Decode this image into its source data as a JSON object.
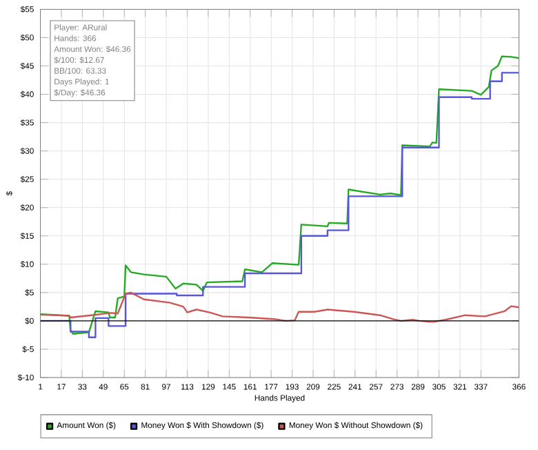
{
  "chart_data": {
    "type": "line",
    "xlabel": "Hands Played",
    "ylabel": "$",
    "xlim": [
      1,
      366
    ],
    "xticks": [
      1,
      17,
      33,
      49,
      65,
      81,
      97,
      113,
      129,
      145,
      161,
      177,
      193,
      209,
      225,
      241,
      257,
      273,
      289,
      305,
      321,
      337,
      366
    ],
    "ylim": [
      -10,
      55
    ],
    "yticks": [
      {
        "value": -10,
        "label": "$-10"
      },
      {
        "value": -5,
        "label": "$-5"
      },
      {
        "value": 0,
        "label": "$0"
      },
      {
        "value": 5,
        "label": "$5"
      },
      {
        "value": 10,
        "label": "$10"
      },
      {
        "value": 15,
        "label": "$15"
      },
      {
        "value": 20,
        "label": "$20"
      },
      {
        "value": 25,
        "label": "$25"
      },
      {
        "value": 30,
        "label": "$30"
      },
      {
        "value": 35,
        "label": "$35"
      },
      {
        "value": 40,
        "label": "$40"
      },
      {
        "value": 45,
        "label": "$45"
      },
      {
        "value": 50,
        "label": "$50"
      },
      {
        "value": 55,
        "label": "$55"
      }
    ],
    "grid": true,
    "legend": "bottom",
    "ref_lines": [
      {
        "axis": "y",
        "value": 0,
        "color": "#000000"
      }
    ],
    "annotations": [
      "Player: ARural",
      "Hands: 366",
      "Amount Won: $46.36",
      "$/100: $12.67",
      "BB/100: 63.33",
      "Days Played: 1",
      "$/Day: $46.36"
    ],
    "series": [
      {
        "name": "Amount Won ($)",
        "color": "#22aa22",
        "x": [
          1,
          23,
          24,
          26,
          38,
          43,
          53,
          54,
          58,
          60,
          65,
          66,
          70,
          80,
          97,
          104,
          110,
          120,
          125,
          128,
          155,
          157,
          170,
          178,
          198,
          200,
          220,
          221,
          235,
          236,
          260,
          268,
          276,
          277,
          298,
          300,
          303,
          305,
          330,
          337,
          343,
          345,
          350,
          353,
          360,
          366
        ],
        "values": [
          1.2,
          0.9,
          -1.7,
          -2.3,
          -2.0,
          1.7,
          1.5,
          0.6,
          0.6,
          4.0,
          4.3,
          9.8,
          8.6,
          8.2,
          7.8,
          5.7,
          6.6,
          6.4,
          5.3,
          6.8,
          7.0,
          9.1,
          8.6,
          10.2,
          9.9,
          17.0,
          16.7,
          17.3,
          17.2,
          23.2,
          22.3,
          22.5,
          22.2,
          31.0,
          30.8,
          31.5,
          31.4,
          40.9,
          40.6,
          39.9,
          41.3,
          44.2,
          45.0,
          46.7,
          46.6,
          46.4
        ]
      },
      {
        "name": "Money Won $ With Showdown ($)",
        "color": "#5555dd",
        "x": [
          1,
          24,
          24,
          38,
          38,
          43,
          43,
          53,
          53,
          66,
          66,
          105,
          105,
          125,
          125,
          157,
          157,
          200,
          200,
          220,
          220,
          236,
          236,
          277,
          277,
          305,
          305,
          330,
          330,
          344,
          344,
          353,
          353,
          366
        ],
        "values": [
          0,
          0,
          -1.9,
          -1.9,
          -2.9,
          -2.9,
          0.5,
          0.5,
          -0.9,
          -0.9,
          4.8,
          4.8,
          4.5,
          4.5,
          6.0,
          6.0,
          8.4,
          8.4,
          15.0,
          15.0,
          16.0,
          16.0,
          22.0,
          22.0,
          30.6,
          30.6,
          39.5,
          39.5,
          39.2,
          39.2,
          42.3,
          42.3,
          43.8,
          43.8
        ]
      },
      {
        "name": "Money Won $ Without Showdown ($)",
        "color": "#cc5555",
        "x": [
          1,
          23,
          24,
          40,
          55,
          60,
          66,
          70,
          80,
          100,
          110,
          113,
          120,
          130,
          140,
          160,
          180,
          188,
          195,
          198,
          210,
          220,
          240,
          260,
          270,
          276,
          285,
          290,
          300,
          310,
          325,
          340,
          355,
          360,
          366
        ],
        "values": [
          1.1,
          0.9,
          0.6,
          1.0,
          1.4,
          1.3,
          4.8,
          5.0,
          3.8,
          3.2,
          2.5,
          1.5,
          2.0,
          1.5,
          0.8,
          0.6,
          0.3,
          0,
          0.1,
          1.6,
          1.6,
          2.0,
          1.6,
          1.0,
          0.3,
          0,
          0.2,
          0,
          -0.2,
          0.2,
          1.0,
          0.8,
          1.7,
          2.6,
          2.4
        ]
      }
    ]
  }
}
